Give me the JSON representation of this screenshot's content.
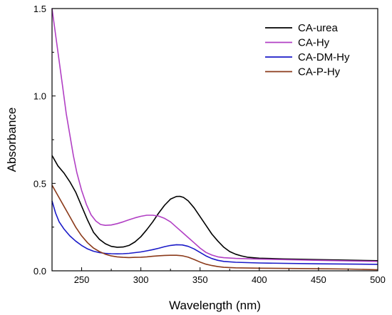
{
  "chart_data": {
    "type": "line",
    "title": "",
    "xlabel": "Wavelength (nm)",
    "ylabel": "Absorbance",
    "xlim": [
      225,
      500
    ],
    "ylim": [
      0,
      1.5
    ],
    "x_ticks": [
      250,
      300,
      350,
      400,
      450,
      500
    ],
    "x_tick_labels": [
      "250",
      "300",
      "350",
      "400",
      "450",
      "500"
    ],
    "y_ticks": [
      0,
      0.5,
      1.0,
      1.5
    ],
    "y_tick_labels": [
      "0.0",
      "0.5",
      "1.0",
      "1.5"
    ],
    "grid": false,
    "legend_position": "top-right",
    "series": [
      {
        "name": "CA-urea",
        "color": "#000000",
        "points": [
          [
            225,
            0.66
          ],
          [
            230,
            0.6
          ],
          [
            235,
            0.56
          ],
          [
            240,
            0.51
          ],
          [
            245,
            0.45
          ],
          [
            250,
            0.37
          ],
          [
            255,
            0.29
          ],
          [
            260,
            0.22
          ],
          [
            265,
            0.18
          ],
          [
            270,
            0.155
          ],
          [
            275,
            0.14
          ],
          [
            280,
            0.135
          ],
          [
            285,
            0.136
          ],
          [
            290,
            0.145
          ],
          [
            295,
            0.165
          ],
          [
            300,
            0.195
          ],
          [
            305,
            0.235
          ],
          [
            310,
            0.28
          ],
          [
            315,
            0.33
          ],
          [
            320,
            0.375
          ],
          [
            325,
            0.41
          ],
          [
            330,
            0.425
          ],
          [
            333,
            0.426
          ],
          [
            336,
            0.42
          ],
          [
            340,
            0.4
          ],
          [
            345,
            0.36
          ],
          [
            350,
            0.31
          ],
          [
            355,
            0.26
          ],
          [
            360,
            0.21
          ],
          [
            365,
            0.17
          ],
          [
            370,
            0.135
          ],
          [
            375,
            0.11
          ],
          [
            380,
            0.095
          ],
          [
            385,
            0.085
          ],
          [
            390,
            0.078
          ],
          [
            400,
            0.072
          ],
          [
            420,
            0.068
          ],
          [
            450,
            0.064
          ],
          [
            475,
            0.061
          ],
          [
            500,
            0.058
          ]
        ]
      },
      {
        "name": "CA-Hy",
        "color": "#b13fc4",
        "points": [
          [
            225,
            1.5
          ],
          [
            228,
            1.35
          ],
          [
            231,
            1.2
          ],
          [
            234,
            1.05
          ],
          [
            237,
            0.9
          ],
          [
            240,
            0.78
          ],
          [
            243,
            0.66
          ],
          [
            246,
            0.56
          ],
          [
            250,
            0.46
          ],
          [
            254,
            0.38
          ],
          [
            258,
            0.32
          ],
          [
            262,
            0.285
          ],
          [
            266,
            0.265
          ],
          [
            270,
            0.26
          ],
          [
            275,
            0.262
          ],
          [
            280,
            0.27
          ],
          [
            285,
            0.28
          ],
          [
            290,
            0.292
          ],
          [
            295,
            0.303
          ],
          [
            300,
            0.312
          ],
          [
            305,
            0.318
          ],
          [
            310,
            0.318
          ],
          [
            315,
            0.313
          ],
          [
            320,
            0.3
          ],
          [
            325,
            0.28
          ],
          [
            330,
            0.25
          ],
          [
            335,
            0.22
          ],
          [
            340,
            0.19
          ],
          [
            345,
            0.16
          ],
          [
            350,
            0.13
          ],
          [
            355,
            0.105
          ],
          [
            360,
            0.09
          ],
          [
            365,
            0.08
          ],
          [
            370,
            0.075
          ],
          [
            380,
            0.071
          ],
          [
            400,
            0.067
          ],
          [
            450,
            0.06
          ],
          [
            500,
            0.054
          ]
        ]
      },
      {
        "name": "CA-DM-Hy",
        "color": "#1a1ac8",
        "points": [
          [
            225,
            0.4
          ],
          [
            228,
            0.33
          ],
          [
            231,
            0.28
          ],
          [
            235,
            0.24
          ],
          [
            240,
            0.2
          ],
          [
            245,
            0.17
          ],
          [
            250,
            0.145
          ],
          [
            255,
            0.125
          ],
          [
            260,
            0.112
          ],
          [
            265,
            0.104
          ],
          [
            270,
            0.1
          ],
          [
            275,
            0.098
          ],
          [
            280,
            0.097
          ],
          [
            285,
            0.098
          ],
          [
            290,
            0.1
          ],
          [
            295,
            0.104
          ],
          [
            300,
            0.108
          ],
          [
            305,
            0.114
          ],
          [
            310,
            0.121
          ],
          [
            315,
            0.129
          ],
          [
            320,
            0.138
          ],
          [
            325,
            0.145
          ],
          [
            330,
            0.149
          ],
          [
            335,
            0.148
          ],
          [
            340,
            0.14
          ],
          [
            345,
            0.125
          ],
          [
            350,
            0.105
          ],
          [
            355,
            0.085
          ],
          [
            360,
            0.07
          ],
          [
            365,
            0.06
          ],
          [
            370,
            0.054
          ],
          [
            380,
            0.049
          ],
          [
            400,
            0.045
          ],
          [
            450,
            0.04
          ],
          [
            500,
            0.037
          ]
        ]
      },
      {
        "name": "CA-P-Hy",
        "color": "#8b3a1a",
        "points": [
          [
            225,
            0.49
          ],
          [
            230,
            0.43
          ],
          [
            235,
            0.37
          ],
          [
            240,
            0.31
          ],
          [
            245,
            0.25
          ],
          [
            250,
            0.2
          ],
          [
            255,
            0.16
          ],
          [
            260,
            0.13
          ],
          [
            265,
            0.11
          ],
          [
            270,
            0.095
          ],
          [
            275,
            0.085
          ],
          [
            280,
            0.08
          ],
          [
            285,
            0.077
          ],
          [
            290,
            0.076
          ],
          [
            295,
            0.077
          ],
          [
            300,
            0.078
          ],
          [
            305,
            0.08
          ],
          [
            310,
            0.083
          ],
          [
            315,
            0.086
          ],
          [
            320,
            0.088
          ],
          [
            325,
            0.089
          ],
          [
            330,
            0.089
          ],
          [
            335,
            0.086
          ],
          [
            340,
            0.078
          ],
          [
            345,
            0.065
          ],
          [
            350,
            0.05
          ],
          [
            355,
            0.038
          ],
          [
            360,
            0.03
          ],
          [
            365,
            0.024
          ],
          [
            370,
            0.02
          ],
          [
            380,
            0.017
          ],
          [
            400,
            0.015
          ],
          [
            450,
            0.012
          ],
          [
            475,
            0.01
          ],
          [
            500,
            0.006
          ]
        ]
      }
    ]
  }
}
